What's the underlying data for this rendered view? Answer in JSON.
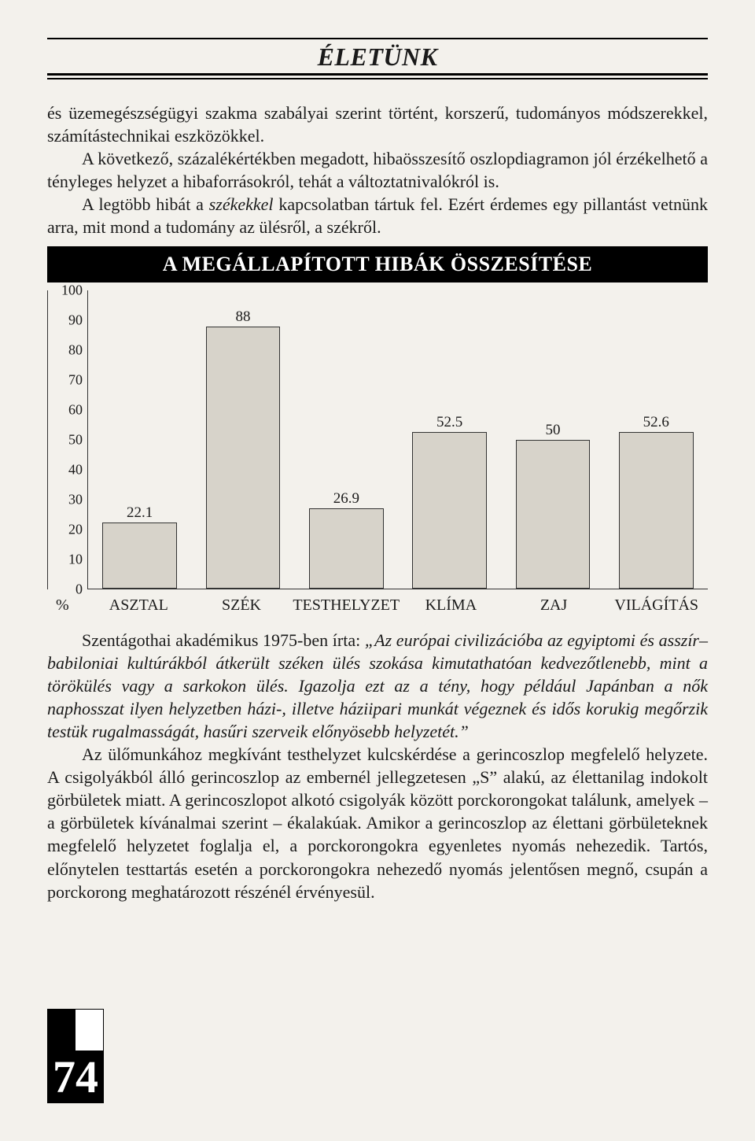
{
  "header": {
    "title": "ÉLETÜNK"
  },
  "paragraphs": {
    "p1": "és üzemegészségügyi szakma szabályai szerint történt, korszerű, tudományos módszerekkel, számítástechnikai eszközökkel.",
    "p2a": "A következő, százalékértékben megadott, hibaösszesítő oszlopdiagramon jól érzékelhető a tényleges helyzet a hibaforrásokról, tehát a változtatnivalókról is.",
    "p3": "A legtöbb hibát a ",
    "p3_em": "székekkel",
    "p3_b": " kapcsolatban tártuk fel. Ezért érdemes egy pillantást vetnünk arra, mit mond a tudomány az ülésről, a székről.",
    "p4_lead": "Szentágothai",
    "p4_lead2": " akadémikus 1975-ben írta: ",
    "p4_qa": "„Az európai civilizációba az egyiptomi és asszír–babiloniai kultúrákból átkerült széken ülés szokása kimutathatóan kedvezőtlenebb, mint a törökülés vagy a sarkokon ülés. Igazolja ezt az a tény, hogy például Japánban a nők naphosszat ilyen helyzetben házi-, illetve háziipari munkát végeznek és idős korukig megőrzik testük rugalmasságát, hasűri szerveik előnyösebb helyzetét.”",
    "p5": "Az ülőmunkához megkívánt testhelyzet kulcskérdése a gerincoszlop megfelelő helyzete. A csigolyákból álló gerincoszlop az embernél jellegzetesen „S” alakú, az élettanilag indokolt görbületek miatt. A gerincoszlopot alkotó csigolyák között porckorongokat találunk, amelyek – a görbületek kívánalmai szerint – ékalakúak. Amikor a gerincoszlop az élettani görbületeknek megfelelő helyzetet foglalja el, a porckorongokra egyenletes nyomás nehezedik. Tartós, előnytelen testtartás esetén a porckorongokra nehezedő nyomás jelentősen megnő, csupán a porckorong meghatározott részénél érvényesül."
  },
  "chart": {
    "type": "bar",
    "title": "A MEGÁLLAPÍTOTT HIBÁK ÖSSZESÍTÉSE",
    "y_ticks": [
      0,
      10,
      20,
      30,
      40,
      50,
      60,
      70,
      80,
      90,
      100
    ],
    "ylim": [
      0,
      100
    ],
    "pct_label": "%",
    "bar_fill": "#d7d3ca",
    "bar_border": "#333333",
    "background": "#f3f1ec",
    "categories": [
      "ASZTAL",
      "SZÉK",
      "TESTHELYZET",
      "KLÍMA",
      "ZAJ",
      "VILÁGÍTÁS"
    ],
    "values": [
      22.1,
      88,
      26.9,
      52.5,
      50,
      52.6
    ],
    "value_labels": [
      "22.1",
      "88",
      "26.9",
      "52.5",
      "50",
      "52.6"
    ],
    "label_fontsize": 20,
    "value_fontsize": 19
  },
  "page_number": "74"
}
